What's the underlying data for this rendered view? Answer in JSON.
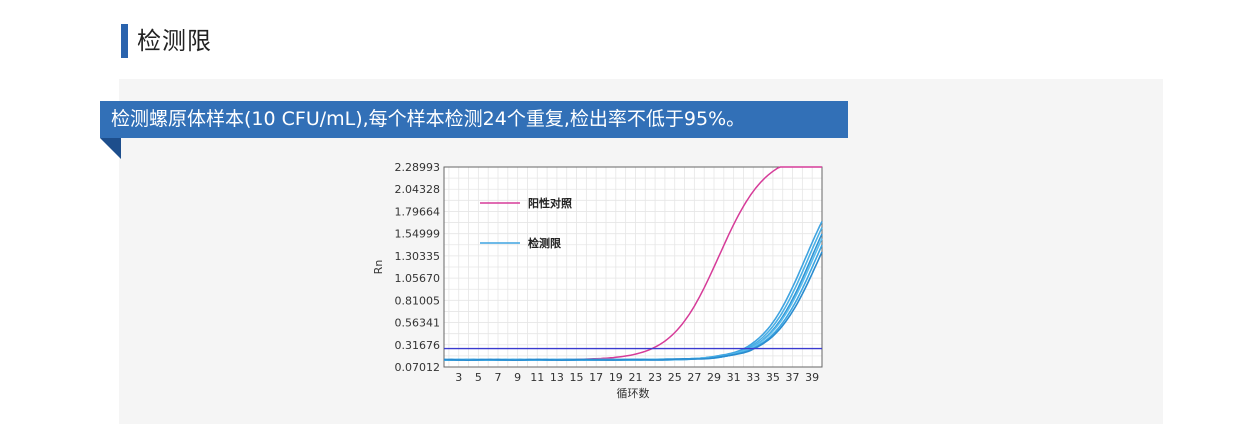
{
  "section": {
    "title": "检测限",
    "accent_color": "#2a63ad"
  },
  "banner": {
    "text": "检测螺原体样本(10 CFU/mL),每个样本检测24个重复,检出率不低于95%。",
    "color": "#3270b7"
  },
  "chart_data": {
    "type": "line",
    "title": "",
    "xlabel": "循环数",
    "ylabel": "Rn",
    "x_ticks": [
      "3",
      "5",
      "7",
      "9",
      "11",
      "13",
      "15",
      "17",
      "19",
      "21",
      "23",
      "25",
      "27",
      "29",
      "31",
      "33",
      "35",
      "37",
      "39"
    ],
    "y_ticks": [
      "2.28993",
      "2.04328",
      "1.79664",
      "1.54999",
      "1.30335",
      "1.05670",
      "0.81005",
      "0.56341",
      "0.31676",
      "0.07012"
    ],
    "xlim": [
      1.5,
      40
    ],
    "ylim": [
      0.07012,
      2.28993
    ],
    "grid": true,
    "legend_position": "top-left",
    "threshold": {
      "value": 0.275,
      "color": "#3a3ad0"
    },
    "series": [
      {
        "name": "阳性对照",
        "color": "#d63c99",
        "ct": 29.5,
        "base": 0.15,
        "amp": 2.3,
        "k": 0.42,
        "group": "control"
      },
      {
        "name": "检测限",
        "color": "#3fa3e0",
        "ct": 38.3,
        "base": 0.15,
        "amp": 2.25,
        "k": 0.45,
        "group": "lod"
      },
      {
        "name": "",
        "color": "#48b0e6",
        "ct": 38.6,
        "base": 0.15,
        "amp": 2.25,
        "k": 0.45,
        "group": "lod"
      },
      {
        "name": "",
        "color": "#2e95d6",
        "ct": 38.9,
        "base": 0.15,
        "amp": 2.25,
        "k": 0.45,
        "group": "lod"
      },
      {
        "name": "",
        "color": "#5cbcec",
        "ct": 39.1,
        "base": 0.15,
        "amp": 2.25,
        "k": 0.44,
        "group": "lod"
      },
      {
        "name": "",
        "color": "#3aa6e3",
        "ct": 39.4,
        "base": 0.15,
        "amp": 2.25,
        "k": 0.44,
        "group": "lod"
      },
      {
        "name": "",
        "color": "#2a8ccf",
        "ct": 39.7,
        "base": 0.15,
        "amp": 2.25,
        "k": 0.43,
        "group": "lod"
      }
    ],
    "legend": [
      {
        "label": "阳性对照",
        "color": "#d63c99"
      },
      {
        "label": "检测限",
        "color": "#3fa3e0"
      }
    ]
  }
}
